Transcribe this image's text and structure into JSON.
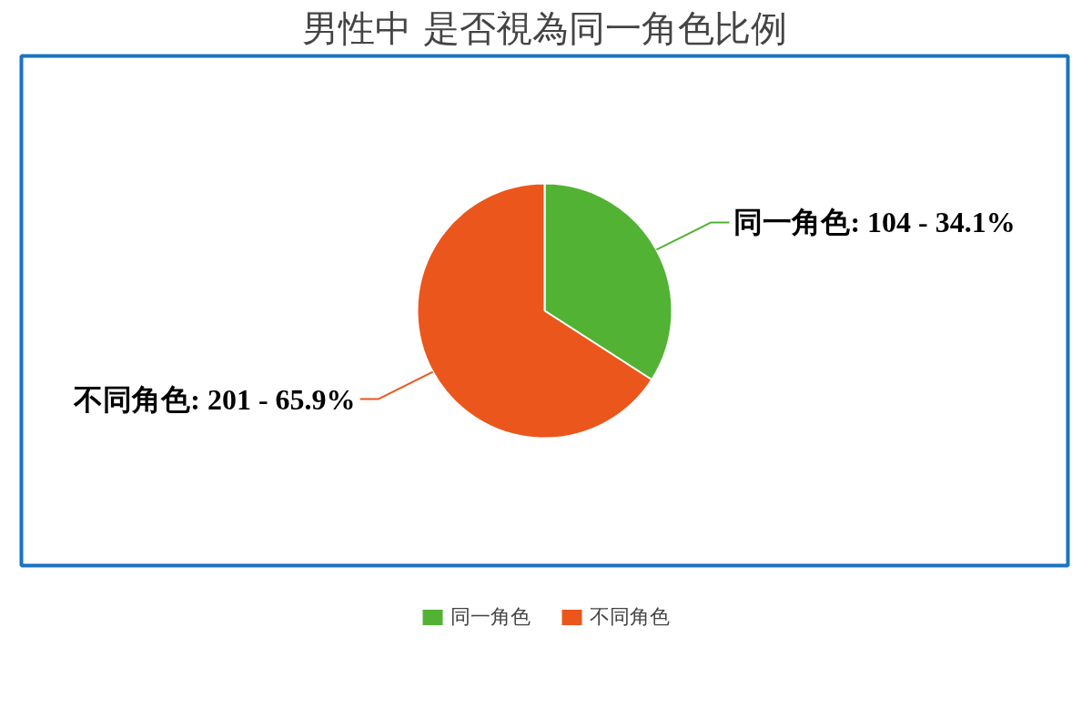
{
  "chart_data": {
    "type": "pie",
    "title": "男性中 是否視為同一角色比例",
    "categories": [
      "同一角色",
      "不同角色"
    ],
    "values": [
      104,
      201
    ],
    "colors": [
      "#52b233",
      "#eb561c"
    ],
    "value_labels": [
      "同一角色: 104 - 34.1%",
      "不同角色: 201 - 65.9%"
    ],
    "legend": "bottom"
  }
}
